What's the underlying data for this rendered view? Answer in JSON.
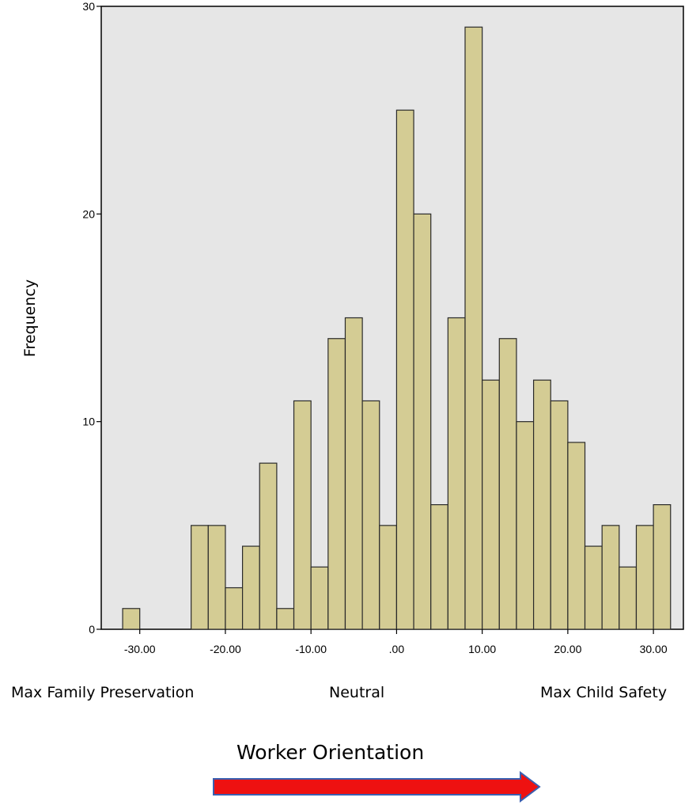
{
  "colors": {
    "plot_background": "#e6e6e6",
    "bar_fill": "#d4cc94",
    "bar_stroke": "#2a2a2a",
    "axis": "#000000",
    "arrow_fill": "#ee1111",
    "arrow_stroke": "#3a5fb0"
  },
  "chart_data": {
    "type": "bar",
    "ylabel": "Frequency",
    "ylim": [
      0,
      30
    ],
    "y_ticks": [
      0,
      10,
      20,
      30
    ],
    "y_tick_labels": [
      "0",
      "10",
      "20",
      "30"
    ],
    "xlim": [
      -34.5,
      33.5
    ],
    "x_ticks": [
      -30,
      -20,
      -10,
      0,
      10,
      20,
      30
    ],
    "x_tick_labels": [
      "-30.00",
      "-20.00",
      "-10.00",
      ".00",
      "10.00",
      "20.00",
      "30.00"
    ],
    "bin_width": 2,
    "bin_starts": [
      -32,
      -30,
      -28,
      -26,
      -24,
      -22,
      -20,
      -18,
      -16,
      -14,
      -12,
      -10,
      -8,
      -6,
      -4,
      -2,
      0,
      2,
      4,
      6,
      8,
      10,
      12,
      14,
      16,
      18,
      20,
      22,
      24,
      26,
      28,
      30
    ],
    "values": [
      1,
      0,
      0,
      0,
      5,
      5,
      2,
      4,
      8,
      1,
      11,
      3,
      14,
      15,
      11,
      5,
      25,
      20,
      6,
      15,
      29,
      12,
      14,
      10,
      12,
      11,
      9,
      4,
      5,
      3,
      5,
      6
    ],
    "grid": false,
    "legend": "none"
  },
  "annotations": {
    "left": "Max Family Preservation",
    "center": "Neutral",
    "right": "Max Child Safety"
  },
  "xlabel": "Worker Orientation",
  "arrow": {
    "icon": "right-arrow-icon"
  }
}
